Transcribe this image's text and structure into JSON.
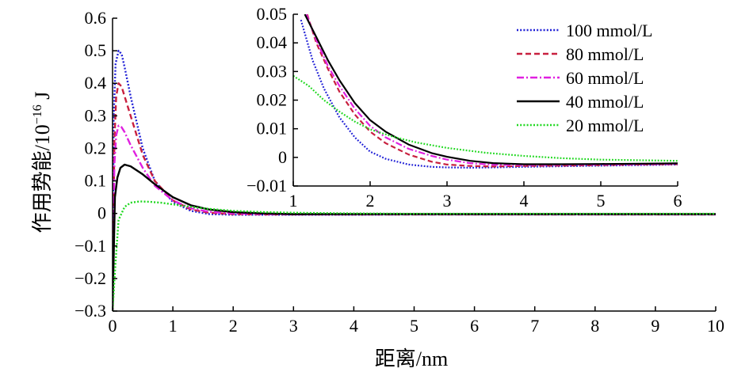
{
  "chart_data": [
    {
      "type": "line",
      "xlabel": "距离/nm",
      "ylabel_text": "作用势能/10",
      "ylabel_exp": "−16",
      "ylabel_unit": " J",
      "xlim": [
        0,
        10
      ],
      "ylim": [
        -0.3,
        0.6
      ],
      "x_ticks": [
        0,
        1,
        2,
        3,
        4,
        5,
        6,
        7,
        8,
        9,
        10
      ],
      "y_ticks": [
        -0.3,
        -0.2,
        -0.1,
        0,
        0.1,
        0.2,
        0.3,
        0.4,
        0.5,
        0.6
      ],
      "y_tick_labels": [
        "−0.3",
        "−0.2",
        "−0.1",
        "0",
        "0.1",
        "0.2",
        "0.3",
        "0.4",
        "0.5",
        "0.6"
      ],
      "grid": false,
      "legend_position": "top-right",
      "series": [
        {
          "name": "100 mmol/L",
          "color": "#1f1fd6",
          "dash": "dotted",
          "x": [
            0,
            0.02,
            0.05,
            0.1,
            0.15,
            0.2,
            0.3,
            0.5,
            0.7,
            1.0,
            1.3,
            1.6,
            2,
            2.5,
            3,
            4,
            5,
            6,
            7,
            8,
            10
          ],
          "y": [
            -0.3,
            0.3,
            0.46,
            0.5,
            0.49,
            0.45,
            0.36,
            0.2,
            0.1,
            0.035,
            0.008,
            -0.002,
            -0.004,
            -0.004,
            -0.004,
            -0.004,
            -0.003,
            -0.003,
            -0.003,
            -0.003,
            -0.003
          ]
        },
        {
          "name": "80 mmol/L",
          "color": "#c8203f",
          "dash": "dashed",
          "x": [
            0,
            0.03,
            0.06,
            0.1,
            0.15,
            0.2,
            0.3,
            0.5,
            0.7,
            1.0,
            1.3,
            1.6,
            2,
            2.5,
            3,
            4,
            5,
            6,
            7,
            8,
            10
          ],
          "y": [
            -0.3,
            0.22,
            0.36,
            0.4,
            0.39,
            0.36,
            0.3,
            0.18,
            0.1,
            0.04,
            0.012,
            0.002,
            -0.002,
            -0.003,
            -0.003,
            -0.003,
            -0.003,
            -0.003,
            -0.003,
            -0.003,
            -0.003
          ]
        },
        {
          "name": "60 mmol/L",
          "color": "#e020e0",
          "dash": "dashdot",
          "x": [
            0,
            0.03,
            0.06,
            0.1,
            0.15,
            0.2,
            0.3,
            0.5,
            0.7,
            1.0,
            1.3,
            1.6,
            2,
            2.5,
            3,
            4,
            5,
            6,
            7,
            8,
            10
          ],
          "y": [
            -0.3,
            0.15,
            0.24,
            0.27,
            0.265,
            0.25,
            0.21,
            0.14,
            0.085,
            0.04,
            0.016,
            0.005,
            0.0,
            -0.002,
            -0.003,
            -0.003,
            -0.003,
            -0.003,
            -0.003,
            -0.003,
            -0.003
          ]
        },
        {
          "name": "40 mmol/L",
          "color": "#000000",
          "dash": "solid",
          "x": [
            0,
            0.04,
            0.08,
            0.13,
            0.2,
            0.3,
            0.5,
            0.7,
            1.0,
            1.3,
            1.6,
            2,
            2.5,
            3,
            4,
            5,
            6,
            7,
            8,
            10
          ],
          "y": [
            -0.3,
            0.05,
            0.11,
            0.14,
            0.15,
            0.145,
            0.12,
            0.09,
            0.05,
            0.025,
            0.012,
            0.004,
            0.0,
            -0.002,
            -0.002,
            -0.002,
            -0.002,
            -0.002,
            -0.002,
            -0.002
          ]
        },
        {
          "name": "20 mmol/L",
          "color": "#20d820",
          "dash": "dotted",
          "x": [
            0,
            0.05,
            0.1,
            0.2,
            0.3,
            0.45,
            0.6,
            0.8,
            1.0,
            1.3,
            1.6,
            2,
            2.5,
            3,
            4,
            5,
            6,
            7,
            8,
            10
          ],
          "y": [
            -0.3,
            -0.15,
            -0.02,
            0.02,
            0.033,
            0.037,
            0.036,
            0.033,
            0.028,
            0.02,
            0.014,
            0.008,
            0.004,
            0.002,
            0.0,
            -0.001,
            -0.001,
            -0.001,
            -0.001,
            -0.001
          ]
        }
      ]
    },
    {
      "type": "line",
      "xlim": [
        1,
        6
      ],
      "ylim": [
        -0.01,
        0.05
      ],
      "x_ticks": [
        1,
        2,
        3,
        4,
        5,
        6
      ],
      "y_ticks": [
        -0.01,
        0,
        0.01,
        0.02,
        0.03,
        0.04,
        0.05
      ],
      "y_tick_labels": [
        "−0.01",
        "0",
        "0.01",
        "0.02",
        "0.03",
        "0.04",
        "0.05"
      ],
      "grid": false,
      "series": [
        {
          "name": "100 mmol/L",
          "color": "#1f1fd6",
          "dash": "dotted",
          "x": [
            1.1,
            1.25,
            1.4,
            1.6,
            1.8,
            2.0,
            2.2,
            2.5,
            2.8,
            3.0,
            3.3,
            3.6,
            4,
            4.5,
            5,
            5.5,
            6
          ],
          "y": [
            0.048,
            0.034,
            0.024,
            0.014,
            0.007,
            0.002,
            -0.0005,
            -0.0025,
            -0.0033,
            -0.0035,
            -0.0036,
            -0.0035,
            -0.0033,
            -0.0031,
            -0.0029,
            -0.0027,
            -0.0025
          ]
        },
        {
          "name": "80 mmol/L",
          "color": "#c8203f",
          "dash": "dashed",
          "x": [
            1.18,
            1.3,
            1.45,
            1.6,
            1.8,
            2.0,
            2.2,
            2.5,
            2.8,
            3.0,
            3.3,
            3.6,
            4,
            4.5,
            5,
            5.5,
            6
          ],
          "y": [
            0.05,
            0.04,
            0.031,
            0.023,
            0.015,
            0.009,
            0.005,
            0.001,
            -0.0015,
            -0.0025,
            -0.003,
            -0.0032,
            -0.003,
            -0.0029,
            -0.0027,
            -0.0025,
            -0.0024
          ]
        },
        {
          "name": "60 mmol/L",
          "color": "#e020e0",
          "dash": "dashdot",
          "x": [
            1.17,
            1.3,
            1.45,
            1.6,
            1.8,
            2.0,
            2.2,
            2.5,
            2.8,
            3.0,
            3.3,
            3.6,
            4,
            4.5,
            5,
            5.5,
            6
          ],
          "y": [
            0.05,
            0.041,
            0.032,
            0.025,
            0.017,
            0.011,
            0.007,
            0.003,
            0.0005,
            -0.0008,
            -0.002,
            -0.0026,
            -0.0027,
            -0.0026,
            -0.0025,
            -0.0024,
            -0.0023
          ]
        },
        {
          "name": "40 mmol/L",
          "color": "#000000",
          "dash": "solid",
          "x": [
            1.15,
            1.3,
            1.45,
            1.6,
            1.8,
            2.0,
            2.2,
            2.5,
            2.8,
            3.0,
            3.3,
            3.6,
            4,
            4.5,
            5,
            5.5,
            6
          ],
          "y": [
            0.05,
            0.042,
            0.034,
            0.027,
            0.019,
            0.013,
            0.009,
            0.0045,
            0.0015,
            0.0002,
            -0.0012,
            -0.002,
            -0.0024,
            -0.0024,
            -0.0023,
            -0.0022,
            -0.0021
          ]
        },
        {
          "name": "20 mmol/L",
          "color": "#20d820",
          "dash": "dotted",
          "x": [
            1.0,
            1.2,
            1.4,
            1.6,
            1.8,
            2.0,
            2.3,
            2.6,
            3.0,
            3.5,
            4,
            4.5,
            5,
            5.5,
            6
          ],
          "y": [
            0.0285,
            0.025,
            0.02,
            0.016,
            0.0125,
            0.0098,
            0.0072,
            0.0052,
            0.0033,
            0.0016,
            0.0005,
            -0.0003,
            -0.0008,
            -0.001,
            -0.0012
          ]
        }
      ]
    }
  ]
}
